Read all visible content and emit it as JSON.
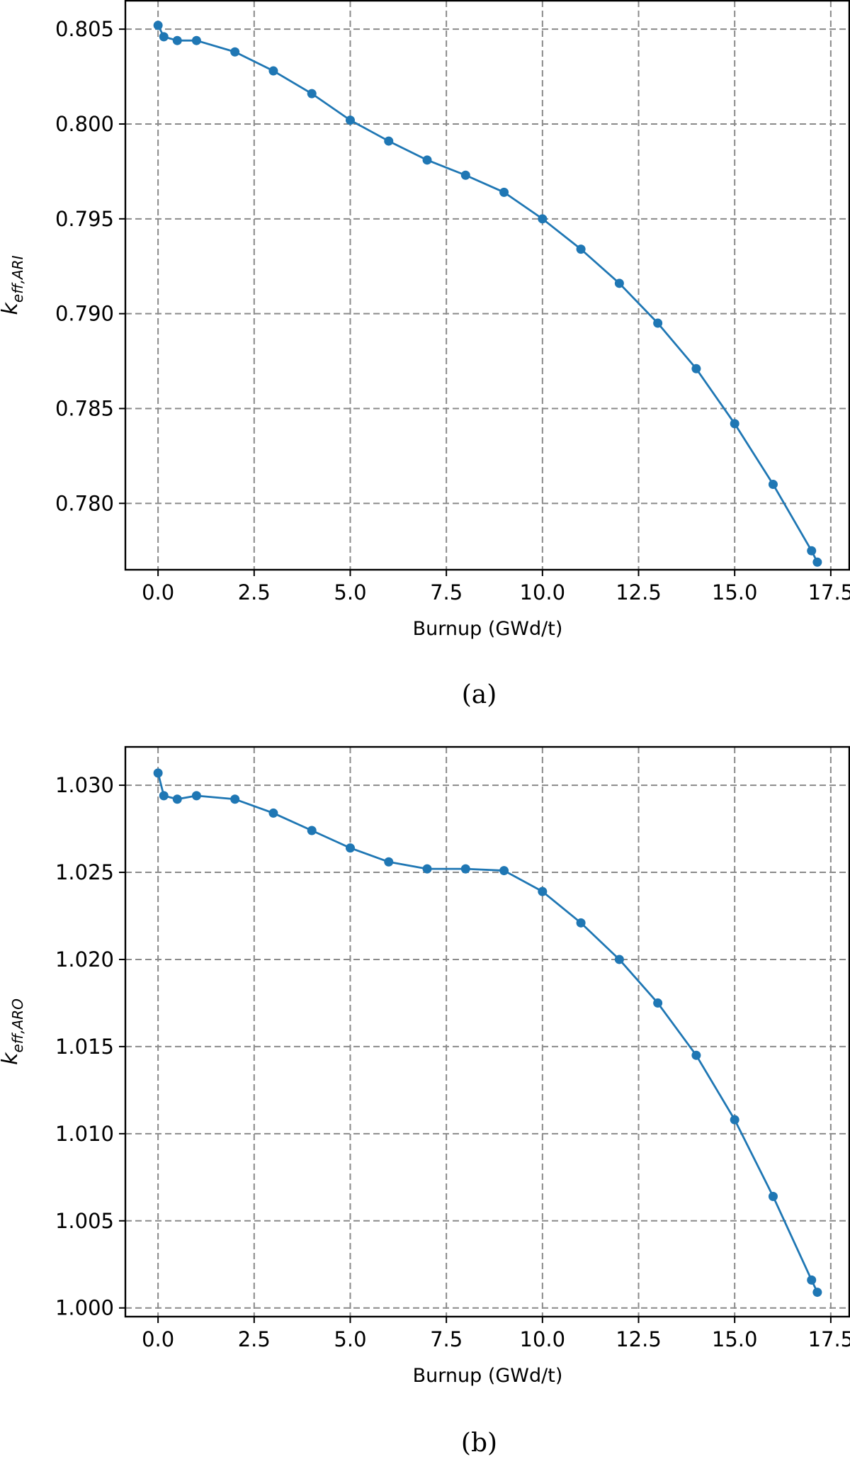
{
  "chart_data": [
    {
      "type": "line",
      "caption": "(a)",
      "xlabel": "Burnup (GWd/t)",
      "ylabel": {
        "base": "k",
        "subscript": "eff,ARI"
      },
      "xlim": [
        -0.85,
        18.0
      ],
      "ylim": [
        0.7765,
        0.8065
      ],
      "xticks": [
        "0.0",
        "2.5",
        "5.0",
        "7.5",
        "10.0",
        "12.5",
        "15.0",
        "17.5"
      ],
      "yticks": [
        "0.780",
        "0.785",
        "0.790",
        "0.795",
        "0.800",
        "0.805"
      ],
      "grid": true,
      "series": [
        {
          "color": "#1f77b4",
          "marker": "circle",
          "x": [
            0,
            0.15,
            0.5,
            1,
            2,
            3,
            4,
            5,
            6,
            7,
            8,
            9,
            10,
            11,
            12,
            13,
            14,
            15,
            16,
            17,
            17.15
          ],
          "y": [
            0.8052,
            0.8046,
            0.8044,
            0.8044,
            0.8038,
            0.8028,
            0.8016,
            0.8002,
            0.7991,
            0.7981,
            0.7973,
            0.7964,
            0.795,
            0.7934,
            0.7916,
            0.7895,
            0.7871,
            0.7842,
            0.781,
            0.7775,
            0.7769
          ]
        }
      ]
    },
    {
      "type": "line",
      "caption": "(b)",
      "xlabel": "Burnup (GWd/t)",
      "ylabel": {
        "base": "k",
        "subscript": "eff,ARO"
      },
      "xlim": [
        -0.85,
        18.0
      ],
      "ylim": [
        0.9995,
        1.0322
      ],
      "xticks": [
        "0.0",
        "2.5",
        "5.0",
        "7.5",
        "10.0",
        "12.5",
        "15.0",
        "17.5"
      ],
      "yticks": [
        "1.000",
        "1.005",
        "1.010",
        "1.015",
        "1.020",
        "1.025",
        "1.030"
      ],
      "grid": true,
      "series": [
        {
          "color": "#1f77b4",
          "marker": "circle",
          "x": [
            0,
            0.15,
            0.5,
            1,
            2,
            3,
            4,
            5,
            6,
            7,
            8,
            9,
            10,
            11,
            12,
            13,
            14,
            15,
            16,
            17,
            17.15
          ],
          "y": [
            1.0307,
            1.0294,
            1.0292,
            1.0294,
            1.0292,
            1.0284,
            1.0274,
            1.0264,
            1.0256,
            1.0252,
            1.0252,
            1.0251,
            1.0239,
            1.0221,
            1.02,
            1.0175,
            1.0145,
            1.0108,
            1.0064,
            1.0016,
            1.0009
          ]
        }
      ]
    }
  ]
}
